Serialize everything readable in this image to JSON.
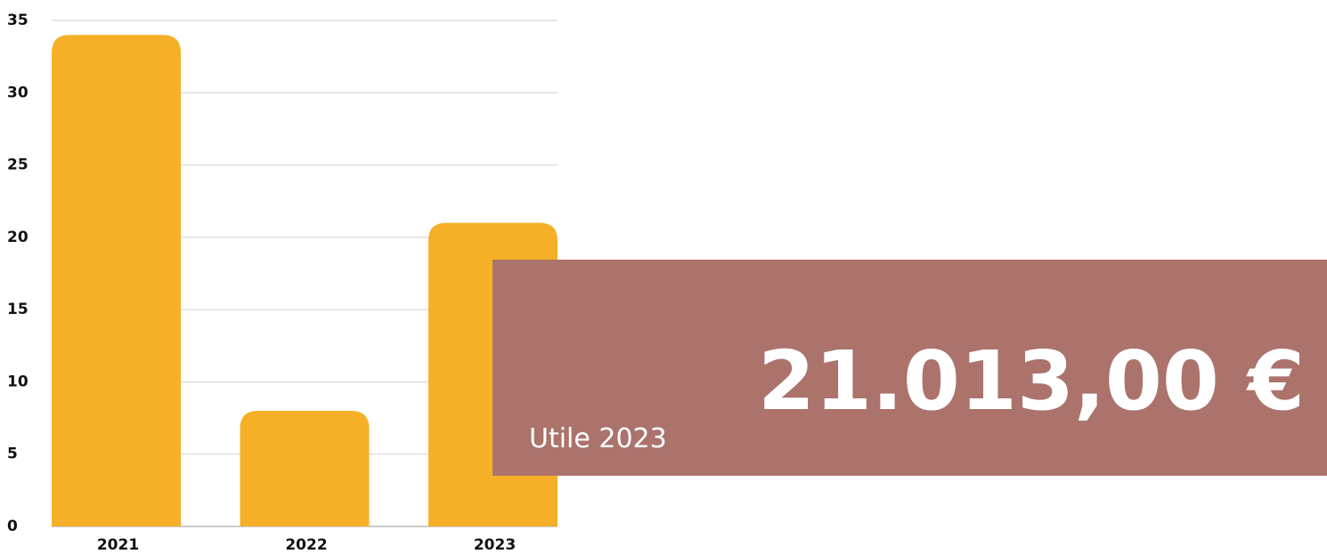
{
  "chart_data": {
    "type": "bar",
    "categories": [
      "2021",
      "2022",
      "2023"
    ],
    "values": [
      34,
      8,
      21
    ],
    "color": "#f5b027",
    "ylim": [
      0,
      35
    ],
    "yticks": [
      0,
      5,
      10,
      15,
      20,
      25,
      30,
      35
    ],
    "grid": true
  },
  "card": {
    "label": "Utile 2023",
    "amount": "21.013,00 €",
    "color": "#ab736c"
  }
}
